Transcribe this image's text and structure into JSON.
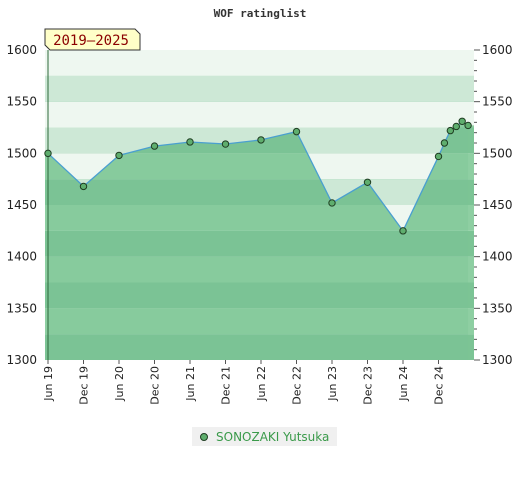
{
  "chart_data": {
    "type": "area",
    "title": "WOF ratinglist",
    "period_label": "2019–2025",
    "ylim": [
      1300,
      1600
    ],
    "y_ticks": [
      1300,
      1350,
      1400,
      1450,
      1500,
      1550,
      1600
    ],
    "x_tick_labels": [
      "Jun 19",
      "Dec 19",
      "Jun 20",
      "Dec 20",
      "Jun 21",
      "Dec 21",
      "Jun 22",
      "Dec 22",
      "Jun 23",
      "Dec 23",
      "Jun 24",
      "Dec 24"
    ],
    "x_range": [
      "2019-06",
      "2025-06"
    ],
    "series": [
      {
        "name": "SONOZAKI Yutsuka",
        "x": [
          "2019-06",
          "2019-12",
          "2020-06",
          "2020-12",
          "2021-06",
          "2021-12",
          "2022-06",
          "2022-12",
          "2023-06",
          "2023-12",
          "2024-06",
          "2024-12",
          "2025-01",
          "2025-02",
          "2025-03",
          "2025-04",
          "2025-05"
        ],
        "values": [
          1500,
          1468,
          1498,
          1507,
          1511,
          1509,
          1513,
          1521,
          1452,
          1472,
          1425,
          1497,
          1510,
          1522,
          1526,
          1531,
          1527
        ]
      }
    ],
    "grid": true,
    "legend_position": "bottom"
  },
  "colors": {
    "band_dark": "#7cc495",
    "band_mid": "#8ecfa2",
    "band_light": "#cde8d6",
    "band_pale": "#eef7f0",
    "line": "#4a9fd0",
    "marker": "#5fae6e"
  }
}
